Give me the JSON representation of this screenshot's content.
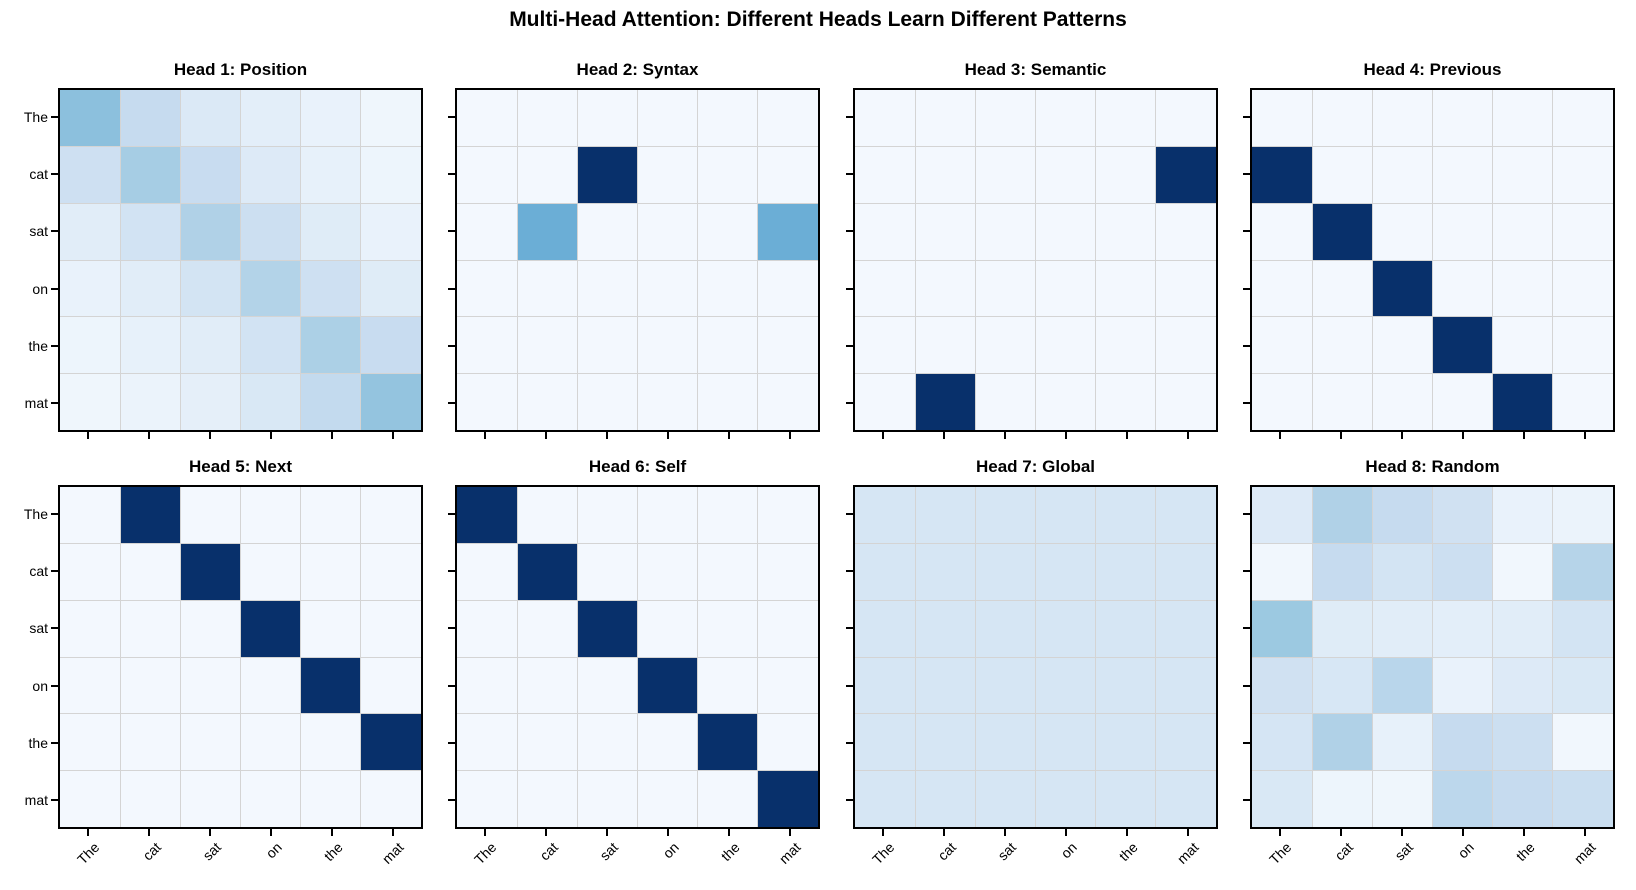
{
  "chart_data": {
    "type": "heatmap",
    "title": "Multi-Head Attention: Different Heads Learn Different Patterns",
    "tokens": [
      "The",
      "cat",
      "sat",
      "on",
      "the",
      "mat"
    ],
    "x_tick_labels": [
      "The",
      "cat",
      "sat",
      "on",
      "the",
      "mat"
    ],
    "y_tick_labels": [
      "The",
      "cat",
      "sat",
      "on",
      "the",
      "mat"
    ],
    "layout": {
      "rows": 2,
      "cols": 4,
      "grid": "off-inside-cells-only",
      "legend": "none",
      "colorbar": "none"
    },
    "colormap": "Blues",
    "vmin": 0,
    "vmax": 1,
    "panels": [
      {
        "title": "Head 1: Position",
        "matrix": [
          [
            0.42,
            0.25,
            0.14,
            0.1,
            0.07,
            0.04
          ],
          [
            0.21,
            0.35,
            0.24,
            0.13,
            0.08,
            0.05
          ],
          [
            0.11,
            0.19,
            0.32,
            0.22,
            0.12,
            0.07
          ],
          [
            0.07,
            0.11,
            0.18,
            0.31,
            0.21,
            0.12
          ],
          [
            0.05,
            0.08,
            0.11,
            0.19,
            0.33,
            0.24
          ],
          [
            0.04,
            0.06,
            0.09,
            0.15,
            0.26,
            0.4
          ]
        ]
      },
      {
        "title": "Head 2: Syntax",
        "matrix": [
          [
            0.02,
            0.02,
            0.02,
            0.02,
            0.02,
            0.02
          ],
          [
            0.02,
            0.02,
            1.0,
            0.02,
            0.02,
            0.02
          ],
          [
            0.02,
            0.5,
            0.02,
            0.02,
            0.02,
            0.5
          ],
          [
            0.02,
            0.02,
            0.02,
            0.02,
            0.02,
            0.02
          ],
          [
            0.02,
            0.02,
            0.02,
            0.02,
            0.02,
            0.02
          ],
          [
            0.02,
            0.02,
            0.02,
            0.02,
            0.02,
            0.02
          ]
        ]
      },
      {
        "title": "Head 3: Semantic",
        "matrix": [
          [
            0.02,
            0.02,
            0.02,
            0.02,
            0.02,
            0.02
          ],
          [
            0.02,
            0.02,
            0.02,
            0.02,
            0.02,
            1.0
          ],
          [
            0.02,
            0.02,
            0.02,
            0.02,
            0.02,
            0.02
          ],
          [
            0.02,
            0.02,
            0.02,
            0.02,
            0.02,
            0.02
          ],
          [
            0.02,
            0.02,
            0.02,
            0.02,
            0.02,
            0.02
          ],
          [
            0.02,
            1.0,
            0.02,
            0.02,
            0.02,
            0.02
          ]
        ]
      },
      {
        "title": "Head 4: Previous",
        "matrix": [
          [
            0.02,
            0.02,
            0.02,
            0.02,
            0.02,
            0.02
          ],
          [
            1.0,
            0.02,
            0.02,
            0.02,
            0.02,
            0.02
          ],
          [
            0.02,
            1.0,
            0.02,
            0.02,
            0.02,
            0.02
          ],
          [
            0.02,
            0.02,
            1.0,
            0.02,
            0.02,
            0.02
          ],
          [
            0.02,
            0.02,
            0.02,
            1.0,
            0.02,
            0.02
          ],
          [
            0.02,
            0.02,
            0.02,
            0.02,
            1.0,
            0.02
          ]
        ]
      },
      {
        "title": "Head 5: Next",
        "matrix": [
          [
            0.02,
            1.0,
            0.02,
            0.02,
            0.02,
            0.02
          ],
          [
            0.02,
            0.02,
            1.0,
            0.02,
            0.02,
            0.02
          ],
          [
            0.02,
            0.02,
            0.02,
            1.0,
            0.02,
            0.02
          ],
          [
            0.02,
            0.02,
            0.02,
            0.02,
            1.0,
            0.02
          ],
          [
            0.02,
            0.02,
            0.02,
            0.02,
            0.02,
            1.0
          ],
          [
            0.02,
            0.02,
            0.02,
            0.02,
            0.02,
            0.02
          ]
        ]
      },
      {
        "title": "Head 6: Self",
        "matrix": [
          [
            1.0,
            0.02,
            0.02,
            0.02,
            0.02,
            0.02
          ],
          [
            0.02,
            1.0,
            0.02,
            0.02,
            0.02,
            0.02
          ],
          [
            0.02,
            0.02,
            1.0,
            0.02,
            0.02,
            0.02
          ],
          [
            0.02,
            0.02,
            0.02,
            1.0,
            0.02,
            0.02
          ],
          [
            0.02,
            0.02,
            0.02,
            0.02,
            1.0,
            0.02
          ],
          [
            0.02,
            0.02,
            0.02,
            0.02,
            0.02,
            1.0
          ]
        ]
      },
      {
        "title": "Head 7: Global",
        "matrix": [
          [
            0.167,
            0.167,
            0.167,
            0.167,
            0.167,
            0.167
          ],
          [
            0.167,
            0.167,
            0.167,
            0.167,
            0.167,
            0.167
          ],
          [
            0.167,
            0.167,
            0.167,
            0.167,
            0.167,
            0.167
          ],
          [
            0.167,
            0.167,
            0.167,
            0.167,
            0.167,
            0.167
          ],
          [
            0.167,
            0.167,
            0.167,
            0.167,
            0.167,
            0.167
          ],
          [
            0.167,
            0.167,
            0.167,
            0.167,
            0.167,
            0.167
          ]
        ]
      },
      {
        "title": "Head 8: Random",
        "matrix": [
          [
            0.13,
            0.32,
            0.25,
            0.2,
            0.07,
            0.06
          ],
          [
            0.03,
            0.25,
            0.18,
            0.22,
            0.03,
            0.3
          ],
          [
            0.38,
            0.12,
            0.11,
            0.1,
            0.11,
            0.18
          ],
          [
            0.2,
            0.16,
            0.29,
            0.07,
            0.13,
            0.15
          ],
          [
            0.17,
            0.32,
            0.08,
            0.25,
            0.22,
            0.03
          ],
          [
            0.15,
            0.05,
            0.04,
            0.28,
            0.25,
            0.23
          ]
        ]
      }
    ]
  },
  "colors": {
    "background": "#ffffff",
    "text": "#000000",
    "panel_border": "#000000",
    "grid_line": "#d4d4d4",
    "tick": "#000000",
    "colormap_stops": [
      [
        0.0,
        "#f7fbff"
      ],
      [
        0.125,
        "#deebf7"
      ],
      [
        0.25,
        "#c6dbef"
      ],
      [
        0.375,
        "#9ecae1"
      ],
      [
        0.5,
        "#6baed6"
      ],
      [
        0.625,
        "#4292c6"
      ],
      [
        0.75,
        "#2171b5"
      ],
      [
        0.875,
        "#08519c"
      ],
      [
        1.0,
        "#08306b"
      ]
    ]
  }
}
